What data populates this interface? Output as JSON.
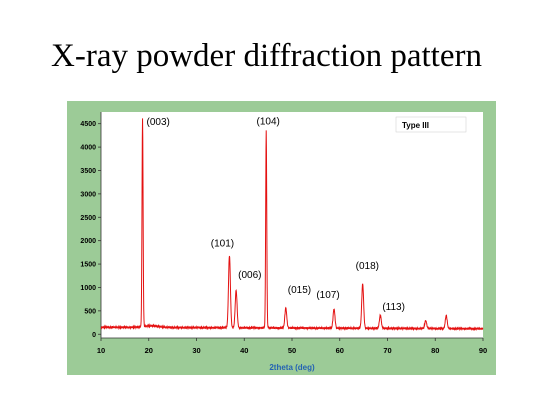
{
  "slide": {
    "title": "X-ray powder diffraction pattern"
  },
  "colors": {
    "frame": "#9ccb97",
    "plot_background": "#ffffff",
    "line": "#e41111",
    "xlabel": "#2463b3"
  },
  "chart_data": {
    "type": "line",
    "title": "",
    "xlabel": "2theta (deg)",
    "ylabel": "",
    "xlim": [
      10,
      90
    ],
    "ylim": [
      -80,
      4750
    ],
    "x_ticks": [
      "10",
      "20",
      "30",
      "40",
      "50",
      "60",
      "70",
      "80",
      "90"
    ],
    "y_ticks": [
      "0",
      "500",
      "1000",
      "1500",
      "2000",
      "2500",
      "3000",
      "3500",
      "4000",
      "4500"
    ],
    "grid": false,
    "legend": {
      "position": "top-right",
      "entries": [
        "Type III"
      ]
    },
    "background_level": 150,
    "series": [
      {
        "peaks": [
          {
            "x": 18.7,
            "y": 4600,
            "label": "(003)"
          },
          {
            "x": 36.9,
            "y": 1700,
            "label": "(101)"
          },
          {
            "x": 38.3,
            "y": 950,
            "label": "(006)"
          },
          {
            "x": 44.6,
            "y": 4350,
            "label": "(104)"
          },
          {
            "x": 48.7,
            "y": 580,
            "label": "(015)"
          },
          {
            "x": 58.8,
            "y": 560,
            "label": "(107)"
          },
          {
            "x": 64.8,
            "y": 1100,
            "label": "(018)"
          },
          {
            "x": 68.5,
            "y": 430,
            "label": "(113)"
          },
          {
            "x": 78.0,
            "y": 320,
            "label": ""
          },
          {
            "x": 82.3,
            "y": 430,
            "label": ""
          }
        ]
      }
    ]
  }
}
